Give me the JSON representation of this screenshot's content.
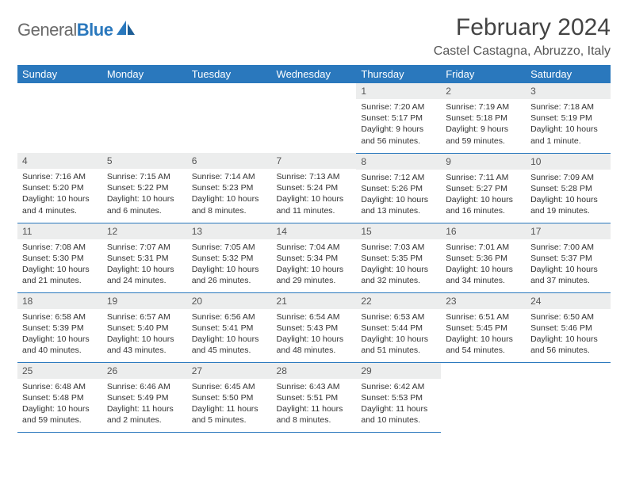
{
  "brand": {
    "general": "General",
    "blue": "Blue"
  },
  "title": "February 2024",
  "location": "Castel Castagna, Abruzzo, Italy",
  "colors": {
    "header_bg": "#2a78bd",
    "header_text": "#ffffff",
    "daynum_bg": "#eceded",
    "border": "#2a78bd",
    "logo_blue": "#2a78bd",
    "logo_grey": "#6a6a6a"
  },
  "weekdays": [
    "Sunday",
    "Monday",
    "Tuesday",
    "Wednesday",
    "Thursday",
    "Friday",
    "Saturday"
  ],
  "weeks": [
    [
      {
        "empty": true
      },
      {
        "empty": true
      },
      {
        "empty": true
      },
      {
        "empty": true
      },
      {
        "day": "1",
        "sunrise": "Sunrise: 7:20 AM",
        "sunset": "Sunset: 5:17 PM",
        "daylight": "Daylight: 9 hours and 56 minutes."
      },
      {
        "day": "2",
        "sunrise": "Sunrise: 7:19 AM",
        "sunset": "Sunset: 5:18 PM",
        "daylight": "Daylight: 9 hours and 59 minutes."
      },
      {
        "day": "3",
        "sunrise": "Sunrise: 7:18 AM",
        "sunset": "Sunset: 5:19 PM",
        "daylight": "Daylight: 10 hours and 1 minute."
      }
    ],
    [
      {
        "day": "4",
        "sunrise": "Sunrise: 7:16 AM",
        "sunset": "Sunset: 5:20 PM",
        "daylight": "Daylight: 10 hours and 4 minutes."
      },
      {
        "day": "5",
        "sunrise": "Sunrise: 7:15 AM",
        "sunset": "Sunset: 5:22 PM",
        "daylight": "Daylight: 10 hours and 6 minutes."
      },
      {
        "day": "6",
        "sunrise": "Sunrise: 7:14 AM",
        "sunset": "Sunset: 5:23 PM",
        "daylight": "Daylight: 10 hours and 8 minutes."
      },
      {
        "day": "7",
        "sunrise": "Sunrise: 7:13 AM",
        "sunset": "Sunset: 5:24 PM",
        "daylight": "Daylight: 10 hours and 11 minutes."
      },
      {
        "day": "8",
        "sunrise": "Sunrise: 7:12 AM",
        "sunset": "Sunset: 5:26 PM",
        "daylight": "Daylight: 10 hours and 13 minutes."
      },
      {
        "day": "9",
        "sunrise": "Sunrise: 7:11 AM",
        "sunset": "Sunset: 5:27 PM",
        "daylight": "Daylight: 10 hours and 16 minutes."
      },
      {
        "day": "10",
        "sunrise": "Sunrise: 7:09 AM",
        "sunset": "Sunset: 5:28 PM",
        "daylight": "Daylight: 10 hours and 19 minutes."
      }
    ],
    [
      {
        "day": "11",
        "sunrise": "Sunrise: 7:08 AM",
        "sunset": "Sunset: 5:30 PM",
        "daylight": "Daylight: 10 hours and 21 minutes."
      },
      {
        "day": "12",
        "sunrise": "Sunrise: 7:07 AM",
        "sunset": "Sunset: 5:31 PM",
        "daylight": "Daylight: 10 hours and 24 minutes."
      },
      {
        "day": "13",
        "sunrise": "Sunrise: 7:05 AM",
        "sunset": "Sunset: 5:32 PM",
        "daylight": "Daylight: 10 hours and 26 minutes."
      },
      {
        "day": "14",
        "sunrise": "Sunrise: 7:04 AM",
        "sunset": "Sunset: 5:34 PM",
        "daylight": "Daylight: 10 hours and 29 minutes."
      },
      {
        "day": "15",
        "sunrise": "Sunrise: 7:03 AM",
        "sunset": "Sunset: 5:35 PM",
        "daylight": "Daylight: 10 hours and 32 minutes."
      },
      {
        "day": "16",
        "sunrise": "Sunrise: 7:01 AM",
        "sunset": "Sunset: 5:36 PM",
        "daylight": "Daylight: 10 hours and 34 minutes."
      },
      {
        "day": "17",
        "sunrise": "Sunrise: 7:00 AM",
        "sunset": "Sunset: 5:37 PM",
        "daylight": "Daylight: 10 hours and 37 minutes."
      }
    ],
    [
      {
        "day": "18",
        "sunrise": "Sunrise: 6:58 AM",
        "sunset": "Sunset: 5:39 PM",
        "daylight": "Daylight: 10 hours and 40 minutes."
      },
      {
        "day": "19",
        "sunrise": "Sunrise: 6:57 AM",
        "sunset": "Sunset: 5:40 PM",
        "daylight": "Daylight: 10 hours and 43 minutes."
      },
      {
        "day": "20",
        "sunrise": "Sunrise: 6:56 AM",
        "sunset": "Sunset: 5:41 PM",
        "daylight": "Daylight: 10 hours and 45 minutes."
      },
      {
        "day": "21",
        "sunrise": "Sunrise: 6:54 AM",
        "sunset": "Sunset: 5:43 PM",
        "daylight": "Daylight: 10 hours and 48 minutes."
      },
      {
        "day": "22",
        "sunrise": "Sunrise: 6:53 AM",
        "sunset": "Sunset: 5:44 PM",
        "daylight": "Daylight: 10 hours and 51 minutes."
      },
      {
        "day": "23",
        "sunrise": "Sunrise: 6:51 AM",
        "sunset": "Sunset: 5:45 PM",
        "daylight": "Daylight: 10 hours and 54 minutes."
      },
      {
        "day": "24",
        "sunrise": "Sunrise: 6:50 AM",
        "sunset": "Sunset: 5:46 PM",
        "daylight": "Daylight: 10 hours and 56 minutes."
      }
    ],
    [
      {
        "day": "25",
        "sunrise": "Sunrise: 6:48 AM",
        "sunset": "Sunset: 5:48 PM",
        "daylight": "Daylight: 10 hours and 59 minutes."
      },
      {
        "day": "26",
        "sunrise": "Sunrise: 6:46 AM",
        "sunset": "Sunset: 5:49 PM",
        "daylight": "Daylight: 11 hours and 2 minutes."
      },
      {
        "day": "27",
        "sunrise": "Sunrise: 6:45 AM",
        "sunset": "Sunset: 5:50 PM",
        "daylight": "Daylight: 11 hours and 5 minutes."
      },
      {
        "day": "28",
        "sunrise": "Sunrise: 6:43 AM",
        "sunset": "Sunset: 5:51 PM",
        "daylight": "Daylight: 11 hours and 8 minutes."
      },
      {
        "day": "29",
        "sunrise": "Sunrise: 6:42 AM",
        "sunset": "Sunset: 5:53 PM",
        "daylight": "Daylight: 11 hours and 10 minutes."
      },
      {
        "empty": true
      },
      {
        "empty": true
      }
    ]
  ]
}
